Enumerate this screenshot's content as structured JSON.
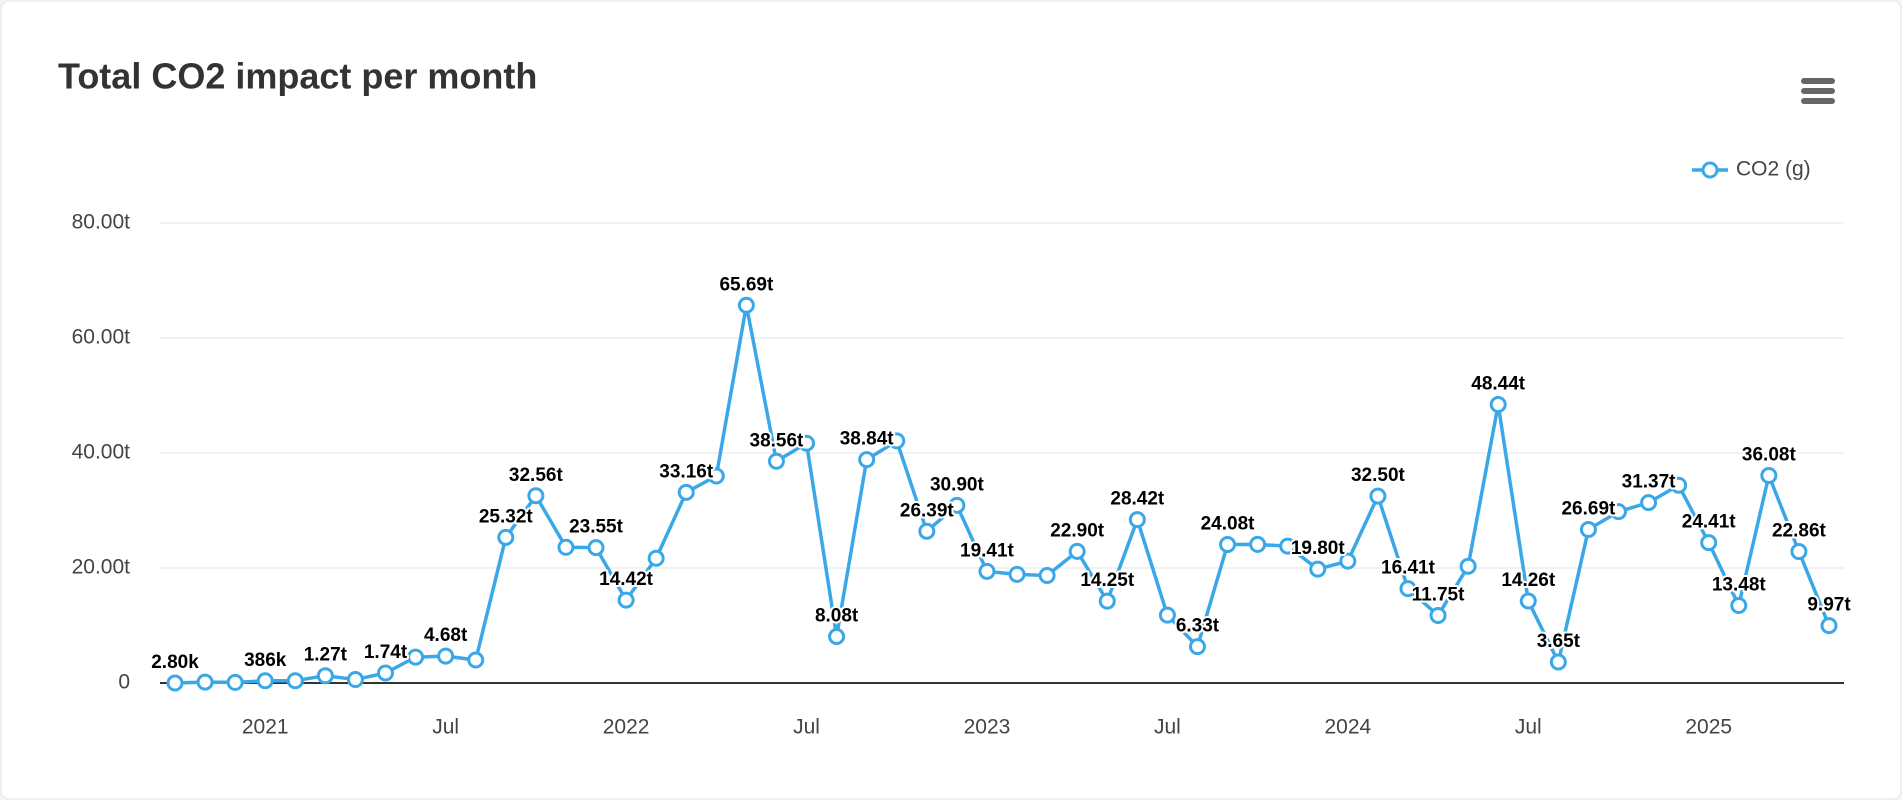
{
  "chart_data": {
    "type": "line",
    "title": "Total CO2 impact per month",
    "x": [
      "2020-10",
      "2020-11",
      "2020-12",
      "2021-01",
      "2021-02",
      "2021-03",
      "2021-04",
      "2021-05",
      "2021-06",
      "2021-07",
      "2021-08",
      "2021-09",
      "2021-10",
      "2021-11",
      "2021-12",
      "2022-01",
      "2022-02",
      "2022-03",
      "2022-04",
      "2022-05",
      "2022-06",
      "2022-07",
      "2022-08",
      "2022-09",
      "2022-10",
      "2022-11",
      "2022-12",
      "2023-01",
      "2023-02",
      "2023-03",
      "2023-04",
      "2023-05",
      "2023-06",
      "2023-07",
      "2023-08",
      "2023-09",
      "2023-10",
      "2023-11",
      "2023-12",
      "2024-01",
      "2024-02",
      "2024-03",
      "2024-04",
      "2024-05",
      "2024-06",
      "2024-07",
      "2024-08",
      "2024-09",
      "2024-10",
      "2024-11",
      "2024-12",
      "2025-01",
      "2025-02",
      "2025-03",
      "2025-04",
      "2025-05"
    ],
    "series": [
      {
        "name": "CO2 (g)",
        "color": "#3aa8e8",
        "values": [
          2800,
          150000,
          100000,
          386000,
          400000,
          1270000,
          600000,
          1740000,
          4500000,
          4680000,
          4000000,
          25320000,
          32560000,
          23600000,
          23550000,
          14420000,
          21700000,
          33160000,
          36000000,
          65690000,
          38560000,
          41700000,
          8080000,
          38840000,
          42100000,
          26390000,
          30900000,
          19410000,
          18900000,
          18700000,
          22900000,
          14250000,
          28420000,
          11800000,
          6330000,
          24080000,
          24100000,
          23800000,
          19800000,
          21200000,
          32500000,
          16410000,
          11750000,
          20300000,
          48440000,
          14260000,
          3650000,
          26690000,
          29800000,
          31370000,
          34400000,
          24410000,
          13480000,
          36080000,
          22860000,
          9970000
        ],
        "value_labels": [
          "2.80k",
          null,
          null,
          "386k",
          null,
          "1.27t",
          null,
          "1.74t",
          null,
          "4.68t",
          null,
          "25.32t",
          "32.56t",
          null,
          "23.55t",
          "14.42t",
          null,
          "33.16t",
          null,
          "65.69t",
          "38.56t",
          null,
          "8.08t",
          "38.84t",
          null,
          "26.39t",
          "30.90t",
          "19.41t",
          null,
          null,
          "22.90t",
          "14.25t",
          "28.42t",
          null,
          "6.33t",
          "24.08t",
          null,
          null,
          "19.80t",
          null,
          "32.50t",
          "16.41t",
          "11.75t",
          null,
          "48.44t",
          "14.26t",
          "3.65t",
          "26.69t",
          null,
          "31.37t",
          null,
          "24.41t",
          "13.48t",
          "36.08t",
          "22.86t",
          "9.97t"
        ]
      }
    ],
    "ylim": [
      0,
      80000000
    ],
    "yticks": [
      0,
      {
        "value": 20000000,
        "label": "20.00t"
      },
      {
        "value": 40000000,
        "label": "40.00t"
      },
      {
        "value": 60000000,
        "label": "60.00t"
      },
      {
        "value": 80000000,
        "label": "80.00t"
      }
    ],
    "xticks": [
      {
        "value": "2021-01",
        "label": "2021"
      },
      {
        "value": "2021-07",
        "label": "Jul"
      },
      {
        "value": "2022-01",
        "label": "2022"
      },
      {
        "value": "2022-07",
        "label": "Jul"
      },
      {
        "value": "2023-01",
        "label": "2023"
      },
      {
        "value": "2023-07",
        "label": "Jul"
      },
      {
        "value": "2024-01",
        "label": "2024"
      },
      {
        "value": "2024-07",
        "label": "Jul"
      },
      {
        "value": "2025-01",
        "label": "2025"
      }
    ],
    "grid": true,
    "legend": "top-right"
  }
}
